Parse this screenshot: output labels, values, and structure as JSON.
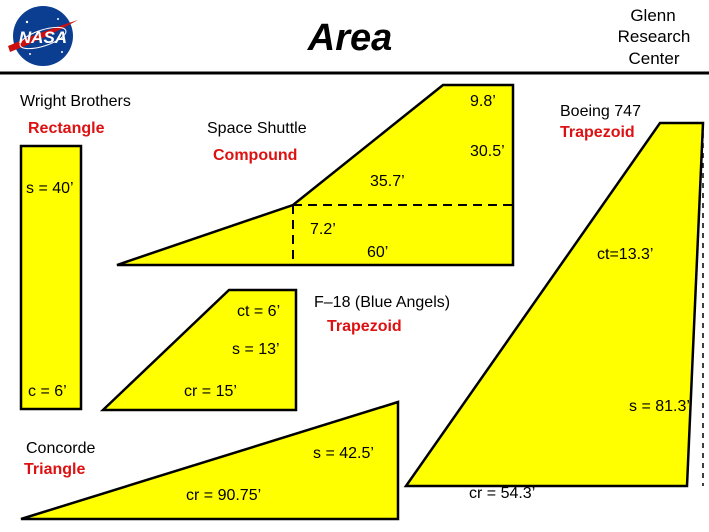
{
  "header": {
    "logo_text": "NASA",
    "title": "Area",
    "org_lines": [
      "Glenn",
      "Research",
      "Center"
    ]
  },
  "colors": {
    "wing_fill": "#ffff00",
    "outline": "#000000",
    "shape_type_text": "#dd1111",
    "logo_blue": "#0b3d91",
    "logo_red": "#cc1010"
  },
  "wings": {
    "wright": {
      "name": "Wright  Brothers",
      "shape": "Rectangle",
      "s": "s = 40’",
      "c": "c = 6’"
    },
    "shuttle": {
      "name": "Space Shuttle",
      "shape": "Compound",
      "d1": "9.8’",
      "d2": "30.5’",
      "d3": "35.7’",
      "d4": "7.2’",
      "d5": "60’"
    },
    "f18": {
      "name": "F–18  (Blue Angels)",
      "shape": "Trapezoid",
      "ct": "ct = 6’",
      "s": "s = 13’",
      "cr": "cr = 15’"
    },
    "concorde": {
      "name": "Concorde",
      "shape": "Triangle",
      "s": "s = 42.5’",
      "cr": "cr = 90.75’"
    },
    "boeing": {
      "name": "Boeing 747",
      "shape": "Trapezoid",
      "ct": "ct=13.3’",
      "s": "s = 81.3’",
      "cr": "cr = 54.3’"
    }
  }
}
